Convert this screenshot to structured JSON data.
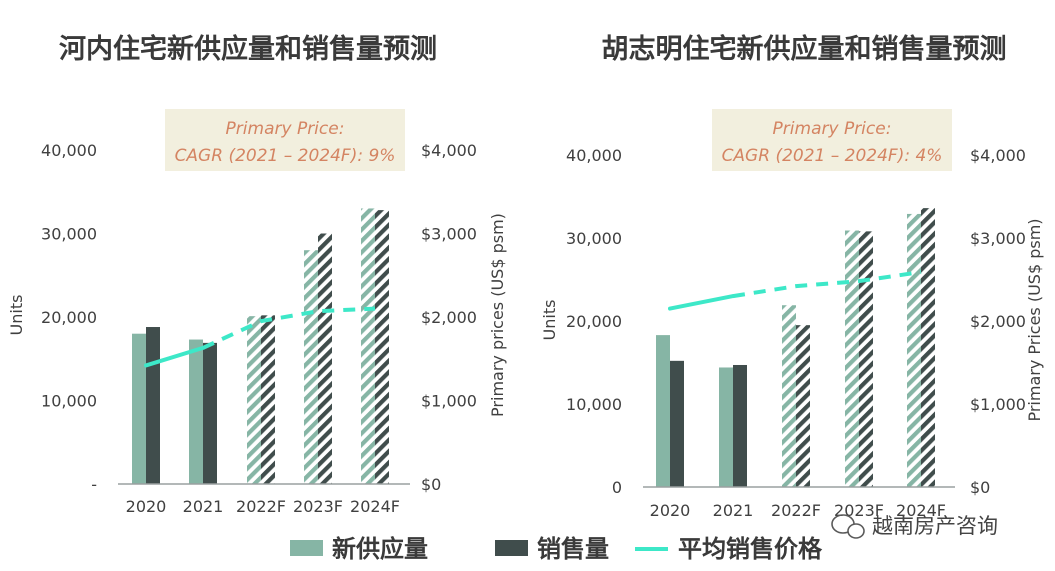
{
  "chart_data": [
    {
      "type": "bar",
      "title": "河内住宅新供应量和销售量预测",
      "categories": [
        "2020",
        "2021",
        "2022F",
        "2023F",
        "2024F"
      ],
      "ylabel": "Units",
      "y2label": "Primary prices (US$ psm)",
      "ylim": [
        0,
        40000
      ],
      "y2lim": [
        0,
        4000
      ],
      "y_ticks": [
        "-",
        "10,000",
        "20,000",
        "30,000",
        "40,000"
      ],
      "y2_ticks": [
        "$0",
        "$1,000",
        "$2,000",
        "$3,000",
        "$4,000"
      ],
      "series": [
        {
          "name": "新供应量",
          "values": [
            18000,
            17300,
            20100,
            28000,
            33000
          ],
          "forecast_from": 2
        },
        {
          "name": "销售量",
          "values": [
            18800,
            16900,
            20200,
            30000,
            32800
          ],
          "forecast_from": 2
        },
        {
          "name": "平均销售价格",
          "axis": "y2",
          "line_type": "line",
          "values": [
            1420,
            1630,
            1950,
            2070,
            2100
          ],
          "dashed_from": 1
        }
      ],
      "annotation": {
        "line1": "Primary Price:",
        "line2": "CAGR (2021 – 2024F): 9%"
      }
    },
    {
      "type": "bar",
      "title": "胡志明住宅新供应量和销售量预测",
      "categories": [
        "2020",
        "2021",
        "2022F",
        "2023F",
        "2024F"
      ],
      "ylabel": "Units",
      "y2label": "Primary Prices (US$ psm)",
      "ylim": [
        0,
        40000
      ],
      "y2lim": [
        0,
        4000
      ],
      "y_ticks": [
        "0",
        "10,000",
        "20,000",
        "30,000",
        "40,000"
      ],
      "y2_ticks": [
        "$0",
        "$1,000",
        "$2,000",
        "$3,000",
        "$4,000"
      ],
      "series": [
        {
          "name": "新供应量",
          "values": [
            18300,
            14400,
            21900,
            30900,
            32900
          ],
          "forecast_from": 2
        },
        {
          "name": "销售量",
          "values": [
            15200,
            14700,
            19500,
            30800,
            33600
          ],
          "forecast_from": 2
        },
        {
          "name": "平均销售价格",
          "axis": "y2",
          "line_type": "line",
          "values": [
            2150,
            2300,
            2420,
            2480,
            2590
          ],
          "dashed_from": 1
        }
      ],
      "annotation": {
        "line1": "Primary Price:",
        "line2": "CAGR (2021 – 2024F): 4%"
      }
    }
  ],
  "legend": [
    "新供应量",
    "销售量",
    "平均销售价格"
  ],
  "watermark": "越南房产咨询",
  "colors": {
    "supply": "#86b5a5",
    "sales": "#404d4c",
    "price": "#3de8c8",
    "title": "#3a3a3a",
    "text": "#404040",
    "annotation_bg": "#f2efde",
    "annotation_text": "#d48462",
    "axis": "#9aa0a0"
  }
}
